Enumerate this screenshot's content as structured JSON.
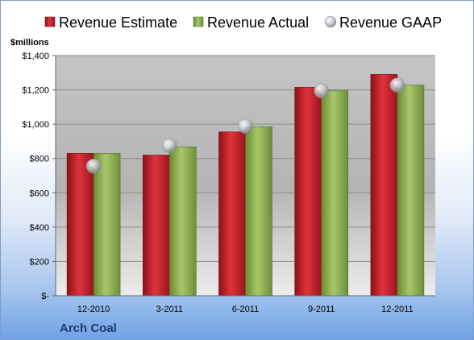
{
  "chart_data": {
    "type": "bar",
    "categories": [
      "12-2010",
      "3-2011",
      "6-2011",
      "9-2011",
      "12-2011"
    ],
    "series": [
      {
        "name": "Revenue Estimate",
        "values": [
          830,
          820,
          955,
          1215,
          1290
        ]
      },
      {
        "name": "Revenue Actual",
        "values": [
          830,
          868,
          985,
          1195,
          1228
        ]
      },
      {
        "name": "Revenue GAAP",
        "values": [
          755,
          875,
          988,
          1195,
          1228
        ]
      }
    ],
    "ylabel": "$millions",
    "ylim": [
      0,
      1400
    ],
    "yticks": [
      0,
      200,
      400,
      600,
      800,
      1000,
      1200,
      1400
    ],
    "ytick_labels": [
      "$-",
      "$200",
      "$400",
      "$600",
      "$800",
      "$1,000",
      "$1,200",
      "$1,400"
    ],
    "legend_position": "top",
    "grid": true,
    "colors": {
      "estimate": "#c0202b",
      "actual": "#8fb04e",
      "gaap": "#b8bcc4"
    },
    "footer": "Arch Coal"
  }
}
